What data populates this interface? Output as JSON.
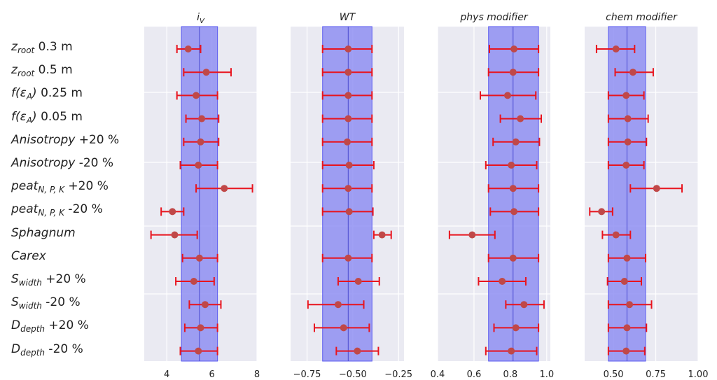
{
  "chart_data": {
    "type": "scatter",
    "error_bars": true,
    "grid": true,
    "rows": [
      {
        "base": "z",
        "sub": "root",
        "suffix": " 0.3 m",
        "italic": false
      },
      {
        "base": "z",
        "sub": "root",
        "suffix": " 0.5 m",
        "italic": false
      },
      {
        "base": "f(ε",
        "sub": "A",
        "post": ")",
        "suffix": "  0.25 m",
        "italic": true
      },
      {
        "base": "f(ε",
        "sub": "A",
        "post": ")",
        "suffix": "  0.05 m",
        "italic": true
      },
      {
        "base": "Anisotropy",
        "suffix": " +20 %",
        "italic": true
      },
      {
        "base": "Anisotropy",
        "suffix": " -20 %",
        "italic": true
      },
      {
        "base": "peat",
        "sub": "N, P, K",
        "suffix": " +20 %",
        "italic": true
      },
      {
        "base": "peat",
        "sub": "N, P, K",
        "suffix": " -20 %",
        "italic": true
      },
      {
        "base": "Sphagnum",
        "suffix": "",
        "italic": true
      },
      {
        "base": "Carex",
        "suffix": "",
        "italic": true
      },
      {
        "base": "S",
        "sub": "width",
        "suffix": " +20 %",
        "italic": true
      },
      {
        "base": "S",
        "sub": "width",
        "suffix": " -20 %",
        "italic": true
      },
      {
        "base": "D",
        "sub": "depth",
        "suffix": " +20 %",
        "italic": true
      },
      {
        "base": "D",
        "sub": "depth",
        "suffix": " -20 %",
        "italic": true
      }
    ],
    "panels": [
      {
        "title": "i",
        "title_sub": "V",
        "xlim": [
          3.0,
          8.0
        ],
        "ticks": [
          4,
          6,
          8
        ],
        "tick_labels": [
          "4",
          "6",
          "8"
        ],
        "band": [
          4.65,
          6.25
        ],
        "center": 5.45,
        "points": [
          {
            "v": 4.95,
            "lo": 4.45,
            "hi": 5.5
          },
          {
            "v": 5.75,
            "lo": 4.75,
            "hi": 6.85
          },
          {
            "v": 5.3,
            "lo": 4.45,
            "hi": 6.25
          },
          {
            "v": 5.55,
            "lo": 4.85,
            "hi": 6.3
          },
          {
            "v": 5.5,
            "lo": 4.75,
            "hi": 6.3
          },
          {
            "v": 5.4,
            "lo": 4.6,
            "hi": 6.25
          },
          {
            "v": 6.55,
            "lo": 5.3,
            "hi": 7.8
          },
          {
            "v": 4.25,
            "lo": 3.75,
            "hi": 4.75
          },
          {
            "v": 4.35,
            "lo": 3.3,
            "hi": 5.35
          },
          {
            "v": 5.45,
            "lo": 4.7,
            "hi": 6.25
          },
          {
            "v": 5.2,
            "lo": 4.4,
            "hi": 6.1
          },
          {
            "v": 5.7,
            "lo": 5.0,
            "hi": 6.4
          },
          {
            "v": 5.5,
            "lo": 4.8,
            "hi": 6.25
          },
          {
            "v": 5.4,
            "lo": 4.6,
            "hi": 6.25
          }
        ]
      },
      {
        "title": "WT",
        "title_sub": "",
        "xlim": [
          -0.84,
          -0.22
        ],
        "ticks": [
          -0.75,
          -0.5,
          -0.25
        ],
        "tick_labels": [
          "−0.75",
          "−0.50",
          "−0.25"
        ],
        "band": [
          -0.665,
          -0.395
        ],
        "center": -0.525,
        "points": [
          {
            "v": -0.525,
            "lo": -0.665,
            "hi": -0.395
          },
          {
            "v": -0.525,
            "lo": -0.665,
            "hi": -0.395
          },
          {
            "v": -0.525,
            "lo": -0.665,
            "hi": -0.395
          },
          {
            "v": -0.525,
            "lo": -0.665,
            "hi": -0.395
          },
          {
            "v": -0.53,
            "lo": -0.665,
            "hi": -0.395
          },
          {
            "v": -0.52,
            "lo": -0.665,
            "hi": -0.385
          },
          {
            "v": -0.525,
            "lo": -0.665,
            "hi": -0.395
          },
          {
            "v": -0.52,
            "lo": -0.665,
            "hi": -0.39
          },
          {
            "v": -0.34,
            "lo": -0.385,
            "hi": -0.29
          },
          {
            "v": -0.525,
            "lo": -0.665,
            "hi": -0.395
          },
          {
            "v": -0.47,
            "lo": -0.58,
            "hi": -0.355
          },
          {
            "v": -0.58,
            "lo": -0.745,
            "hi": -0.44
          },
          {
            "v": -0.55,
            "lo": -0.71,
            "hi": -0.41
          },
          {
            "v": -0.475,
            "lo": -0.59,
            "hi": -0.36
          }
        ]
      },
      {
        "title": "phys modifier",
        "title_sub": "",
        "xlim": [
          0.4,
          1.02
        ],
        "ticks": [
          0.4,
          0.6,
          0.8,
          1.0
        ],
        "tick_labels": [
          "0.4",
          "0.6",
          "0.8",
          "1.0"
        ],
        "band": [
          0.68,
          0.955
        ],
        "center": 0.815,
        "points": [
          {
            "v": 0.82,
            "lo": 0.685,
            "hi": 0.955
          },
          {
            "v": 0.815,
            "lo": 0.68,
            "hi": 0.955
          },
          {
            "v": 0.785,
            "lo": 0.635,
            "hi": 0.94
          },
          {
            "v": 0.855,
            "lo": 0.745,
            "hi": 0.97
          },
          {
            "v": 0.83,
            "lo": 0.705,
            "hi": 0.96
          },
          {
            "v": 0.805,
            "lo": 0.665,
            "hi": 0.945
          },
          {
            "v": 0.815,
            "lo": 0.68,
            "hi": 0.955
          },
          {
            "v": 0.82,
            "lo": 0.69,
            "hi": 0.955
          },
          {
            "v": 0.59,
            "lo": 0.465,
            "hi": 0.715
          },
          {
            "v": 0.815,
            "lo": 0.68,
            "hi": 0.955
          },
          {
            "v": 0.755,
            "lo": 0.625,
            "hi": 0.885
          },
          {
            "v": 0.875,
            "lo": 0.775,
            "hi": 0.985
          },
          {
            "v": 0.83,
            "lo": 0.71,
            "hi": 0.955
          },
          {
            "v": 0.805,
            "lo": 0.665,
            "hi": 0.945
          }
        ]
      },
      {
        "title": "chem modifier",
        "title_sub": "",
        "xlim": [
          0.33,
          1.0
        ],
        "ticks": [
          0.5,
          0.75,
          1.0
        ],
        "tick_labels": [
          "0.50",
          "0.75",
          "1.00"
        ],
        "band": [
          0.47,
          0.69
        ],
        "center": 0.58,
        "points": [
          {
            "v": 0.515,
            "lo": 0.4,
            "hi": 0.625
          },
          {
            "v": 0.615,
            "lo": 0.51,
            "hi": 0.735
          },
          {
            "v": 0.575,
            "lo": 0.47,
            "hi": 0.68
          },
          {
            "v": 0.585,
            "lo": 0.47,
            "hi": 0.705
          },
          {
            "v": 0.585,
            "lo": 0.47,
            "hi": 0.695
          },
          {
            "v": 0.575,
            "lo": 0.47,
            "hi": 0.68
          },
          {
            "v": 0.755,
            "lo": 0.6,
            "hi": 0.905
          },
          {
            "v": 0.43,
            "lo": 0.36,
            "hi": 0.495
          },
          {
            "v": 0.515,
            "lo": 0.435,
            "hi": 0.6
          },
          {
            "v": 0.58,
            "lo": 0.47,
            "hi": 0.69
          },
          {
            "v": 0.565,
            "lo": 0.465,
            "hi": 0.665
          },
          {
            "v": 0.595,
            "lo": 0.47,
            "hi": 0.725
          },
          {
            "v": 0.58,
            "lo": 0.47,
            "hi": 0.695
          },
          {
            "v": 0.575,
            "lo": 0.47,
            "hi": 0.685
          }
        ]
      }
    ]
  },
  "colors": {
    "panel_bg": "#eaeaf2",
    "grid": "#ffffff",
    "band": "#8f8ff2",
    "band_edge": "#5b5bf0",
    "center_line": "#4a4ad0",
    "error_bar": "#e8141e",
    "marker": "#c04848",
    "text": "#222222"
  }
}
